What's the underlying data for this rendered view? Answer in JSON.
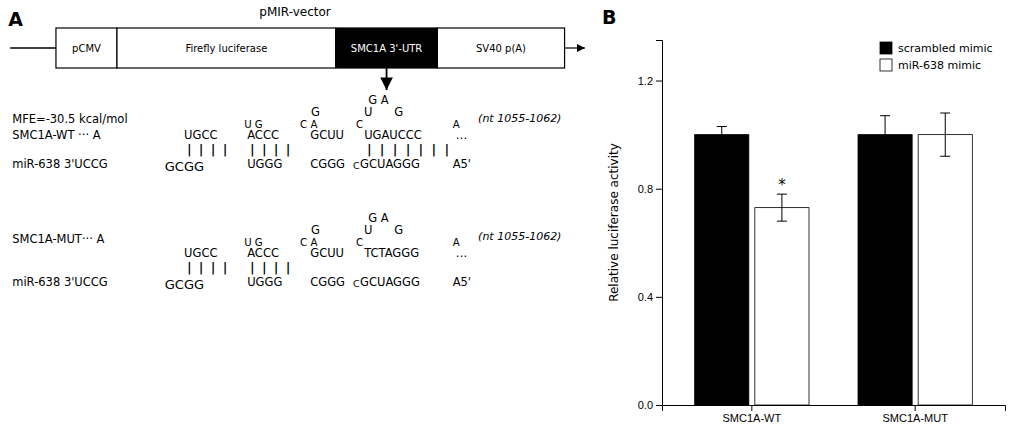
{
  "chart_data": [
    {
      "type": "diagram",
      "title": "pMIR-vector",
      "categories": [
        "pCMV",
        "Firefly luciferase",
        "SMC1A 3'-UTR",
        "SV40 p(A)"
      ],
      "colors": [
        "#ffffff",
        "#ffffff",
        "#000000",
        "#ffffff"
      ],
      "annotations": [
        "A",
        "MFE=-30.5 kcal/mol",
        "SMC1A-WT ···  A",
        "G A",
        "G",
        "U",
        "G",
        "(nt 1055-1062)",
        "UGCC",
        "U G",
        "ACCC",
        "C A",
        "GCUU",
        "C",
        "UGAUCCC",
        "A",
        "…",
        "| | | |",
        "| | | |",
        "| | | | | | |",
        "miR-638  3'UCCG",
        "GCGG",
        "UGGG",
        "CGGG",
        "C",
        "GCUAGGG",
        "A5'",
        "SMC1A-MUT···  A",
        "G A",
        "G",
        "U",
        "G",
        "(nt 1055-1062)",
        "UGCC",
        "U G",
        "ACCC",
        "C A",
        "GCUU",
        "C",
        "TCTAGGG",
        "A",
        "…",
        "| | | |",
        "| | | |",
        "miR-638  3'UCCG",
        "GCGG",
        "UGGG",
        "CGGG",
        "C",
        "GCUAGGG",
        "A5'"
      ]
    },
    {
      "type": "bar",
      "categories": [
        "SMC1A-WT",
        "SMC1A-MUT"
      ],
      "series": [
        {
          "name": "scrambled mimic",
          "color": "#000000",
          "values": [
            1.0,
            1.0
          ],
          "errors": [
            0.03,
            0.07
          ]
        },
        {
          "name": "miR-638 mimic",
          "color": "#ffffff",
          "values": [
            0.73,
            1.0
          ],
          "errors": [
            0.05,
            0.08
          ]
        }
      ],
      "ylabel": "Relative luciferase activity",
      "ylim": [
        0,
        1.35
      ],
      "yticks": [
        {
          "value": 0.0,
          "label": "0.0"
        },
        0.4,
        0.8,
        1.2
      ],
      "legend": "upper right",
      "annotations": [
        "B",
        "*"
      ]
    }
  ]
}
